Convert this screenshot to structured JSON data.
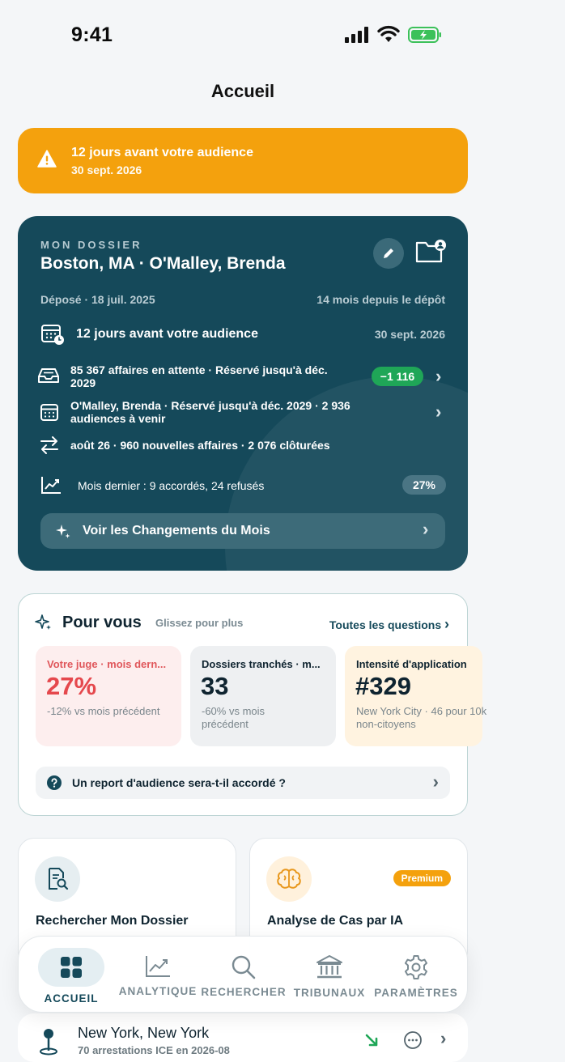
{
  "status_bar": {
    "time": "9:41"
  },
  "header": {
    "title": "Accueil"
  },
  "alert": {
    "title": "12 jours avant votre audience",
    "date": "30 sept. 2026"
  },
  "dossier": {
    "kicker": "MON DOSSIER",
    "name": "Boston, MA · O'Malley, Brenda",
    "filed": "Déposé · 18 juil. 2025",
    "since": "14 mois depuis le dépôt",
    "hearing_text": "12 jours avant votre audience",
    "hearing_date": "30 sept. 2026",
    "rows": [
      {
        "text": "85 367 affaires en attente · Réservé jusqu'à déc. 2029",
        "badge": "−1 116"
      },
      {
        "text": "O'Malley, Brenda · Réservé jusqu'à déc. 2029 · 2 936 audiences à venir"
      },
      {
        "text": "août 26 · 960 nouvelles affaires · 2 076 clôturées"
      },
      {
        "text": "Mois dernier : 9 accordés, 24 refusés",
        "badge": "27%"
      }
    ],
    "changes_button": "Voir les Changements du Mois"
  },
  "for_you": {
    "title": "Pour vous",
    "hint": "Glissez pour plus",
    "link": "Toutes les questions",
    "cards": [
      {
        "label": "Votre juge · mois dern...",
        "value": "27%",
        "sub": "-12% vs mois précédent"
      },
      {
        "label": "Dossiers tranchés · m...",
        "value": "33",
        "sub": "-60% vs mois précédent"
      },
      {
        "label": "Intensité d'application",
        "value": "#329",
        "sub": "New York City · 46 pour 10k non-citoyens"
      }
    ],
    "question": "Un report d'audience sera-t-il accordé ?"
  },
  "tools": [
    {
      "label": "Rechercher Mon Dossier"
    },
    {
      "label": "Analyse de Cas par IA",
      "badge": "Premium"
    }
  ],
  "bottom_item": {
    "city": "New York, New York",
    "sub": "70 arrestations ICE en 2026-08"
  },
  "tab_bar": {
    "tabs": [
      {
        "label": "ACCUEIL",
        "icon": "grid-icon",
        "active": true
      },
      {
        "label": "ANALYTIQUE",
        "icon": "chart-icon"
      },
      {
        "label": "RECHERCHER",
        "icon": "search-icon"
      },
      {
        "label": "TRIBUNAUX",
        "icon": "courthouse-icon"
      },
      {
        "label": "PARAMÈTRES",
        "icon": "gear-icon"
      }
    ]
  },
  "colors": {
    "accent_teal": "#15495a",
    "alert_orange": "#f4a10d",
    "success_green": "#1fa657",
    "danger_red": "#e5484d",
    "background": "#f4f6f8"
  }
}
